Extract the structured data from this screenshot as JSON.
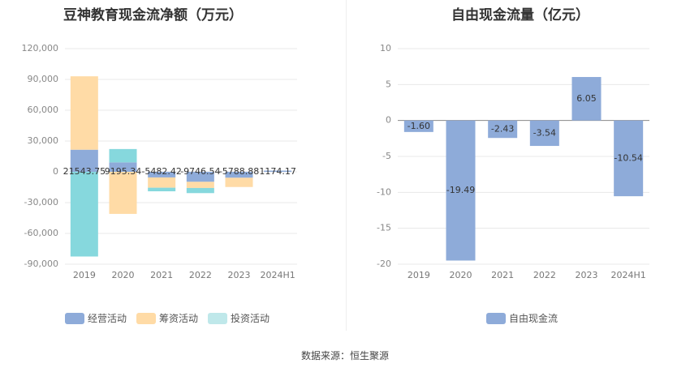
{
  "footer": {
    "source": "数据来源：恒生聚源"
  },
  "colors": {
    "operating": "#8eabd9",
    "financing": "#ffdba6",
    "investing": "#86d8dd",
    "fcf": "#8eabd9"
  },
  "chart_data": [
    {
      "type": "bar",
      "title": "豆神教育现金流净额（万元）",
      "categories": [
        "2019",
        "2020",
        "2021",
        "2022",
        "2023",
        "2024H1"
      ],
      "series": [
        {
          "name": "经营活动",
          "values": [
            21543.75,
            9195.34,
            -5482.42,
            -9746.54,
            -5788.88,
            1174.17
          ]
        },
        {
          "name": "筹资活动",
          "values": [
            71500,
            -41000,
            -10000,
            -6000,
            -9000,
            0
          ]
        },
        {
          "name": "投资活动",
          "values": [
            -82500,
            13000,
            -3500,
            -5000,
            0,
            0
          ]
        }
      ],
      "labels": [
        "21543.75",
        "9195.34",
        "-5482.42",
        "-9746.54",
        "-5788.88",
        "1174.17"
      ],
      "ylim": [
        -90000,
        120000
      ],
      "yticks": [
        "120,000",
        "90,000",
        "60,000",
        "30,000",
        "0",
        "-30,000",
        "-60,000",
        "-90,000"
      ],
      "legend": "bottom",
      "grid": true
    },
    {
      "type": "bar",
      "title": "自由现金流量（亿元）",
      "categories": [
        "2019",
        "2020",
        "2021",
        "2022",
        "2023",
        "2024H1"
      ],
      "series": [
        {
          "name": "自由现金流",
          "values": [
            -1.6,
            -19.49,
            -2.43,
            -3.54,
            6.05,
            -10.54
          ]
        }
      ],
      "labels": [
        "-1.60",
        "-19.49",
        "-2.43",
        "-3.54",
        "6.05",
        "-10.54"
      ],
      "ylim": [
        -20,
        10
      ],
      "yticks": [
        "10",
        "5",
        "0",
        "-5",
        "-10",
        "-15",
        "-20"
      ],
      "legend": "bottom",
      "grid": true
    }
  ]
}
